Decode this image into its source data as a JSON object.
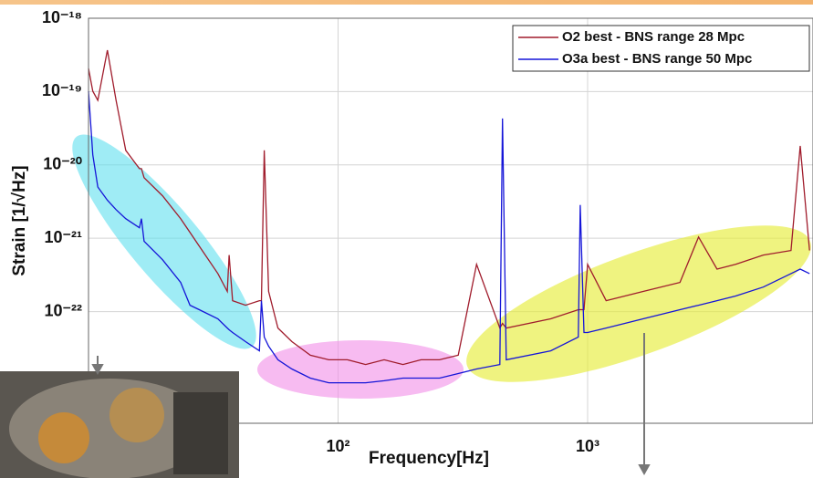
{
  "chart_data": {
    "type": "line",
    "xlabel": "Frequency[Hz]",
    "ylabel": "Strain [1/√Hz]",
    "xscale": "log",
    "yscale": "log",
    "grid": true,
    "legend": "upper right",
    "xlim": [
      10,
      8000
    ],
    "ylim": [
      3e-24,
      1e-18
    ],
    "xticks": [
      {
        "value": 100,
        "label": "10²"
      },
      {
        "value": 1000,
        "label": "10³"
      }
    ],
    "yticks": [
      {
        "value": 1e-18,
        "label": "10⁻¹⁸"
      },
      {
        "value": 1e-19,
        "label": "10⁻¹⁹"
      },
      {
        "value": 1e-20,
        "label": "10⁻²⁰"
      },
      {
        "value": 1e-21,
        "label": "10⁻²¹"
      },
      {
        "value": 1e-22,
        "label": "10⁻²²"
      }
    ],
    "x": [
      10,
      10.4,
      10.9,
      11.9,
      12.9,
      14.1,
      16.0,
      16.3,
      16.7,
      19.8,
      23.4,
      25.5,
      27.8,
      33.0,
      36.0,
      36.6,
      37.8,
      42.6,
      48.4,
      49.3,
      50.6,
      52.7,
      57.4,
      65.3,
      77.4,
      91.8,
      109,
      129,
      153,
      182,
      215,
      255,
      303,
      359,
      445,
      456,
      472,
      711,
      918,
      934,
      967,
      1000,
      1186,
      1668,
      2344,
      2783,
      3300,
      3917,
      5058,
      6531,
      7112,
      7745
    ],
    "series": [
      {
        "name": "O2 best - BNS range 28 Mpc",
        "color": "#a01c2c",
        "values": [
          2.07e-19,
          1.01e-19,
          7.6e-20,
          3.67e-19,
          7.6e-20,
          1.58e-20,
          8.9e-21,
          8.9e-21,
          6.7e-21,
          3.8e-21,
          1.85e-21,
          1.2e-21,
          7.8e-22,
          3.3e-22,
          1.88e-22,
          5.9e-22,
          1.41e-22,
          1.22e-22,
          1.41e-22,
          1.41e-22,
          1.58e-20,
          1.88e-22,
          5.97e-23,
          3.89e-23,
          2.54e-23,
          2.2e-23,
          2.2e-23,
          1.9e-23,
          2.2e-23,
          1.9e-23,
          2.2e-23,
          2.2e-23,
          2.54e-23,
          4.4e-22,
          5.97e-23,
          6.9e-23,
          5.97e-23,
          7.96e-23,
          1.06e-22,
          1.06e-22,
          1.06e-22,
          4.4e-22,
          1.41e-22,
          1.88e-22,
          2.5e-22,
          1.04e-21,
          3.8e-22,
          4.4e-22,
          5.9e-22,
          6.8e-22,
          1.82e-20,
          6.8e-22
        ]
      },
      {
        "name": "O3a best - BNS range 50 Mpc",
        "color": "#1515d8",
        "values": [
          1.01e-19,
          1.37e-20,
          5e-21,
          3.3e-21,
          2.46e-21,
          1.85e-21,
          1.39e-21,
          1.85e-21,
          9.1e-22,
          5.1e-22,
          2.5e-22,
          1.22e-22,
          1.06e-22,
          7.96e-23,
          5.97e-23,
          5.65e-23,
          5.18e-23,
          3.89e-23,
          2.92e-23,
          1.41e-22,
          4.49e-23,
          3.37e-23,
          2.2e-23,
          1.65e-23,
          1.24e-23,
          1.07e-23,
          1.07e-23,
          1.07e-23,
          1.14e-23,
          1.24e-23,
          1.24e-23,
          1.24e-23,
          1.43e-23,
          1.65e-23,
          1.9e-23,
          4.3e-20,
          2.2e-23,
          2.92e-23,
          4.49e-23,
          2.84e-21,
          5.18e-23,
          5.18e-23,
          5.97e-23,
          7.96e-23,
          1.06e-22,
          1.22e-22,
          1.41e-22,
          1.63e-22,
          2.16e-22,
          3.3e-22,
          3.8e-22,
          3.3e-22
        ]
      }
    ]
  }
}
